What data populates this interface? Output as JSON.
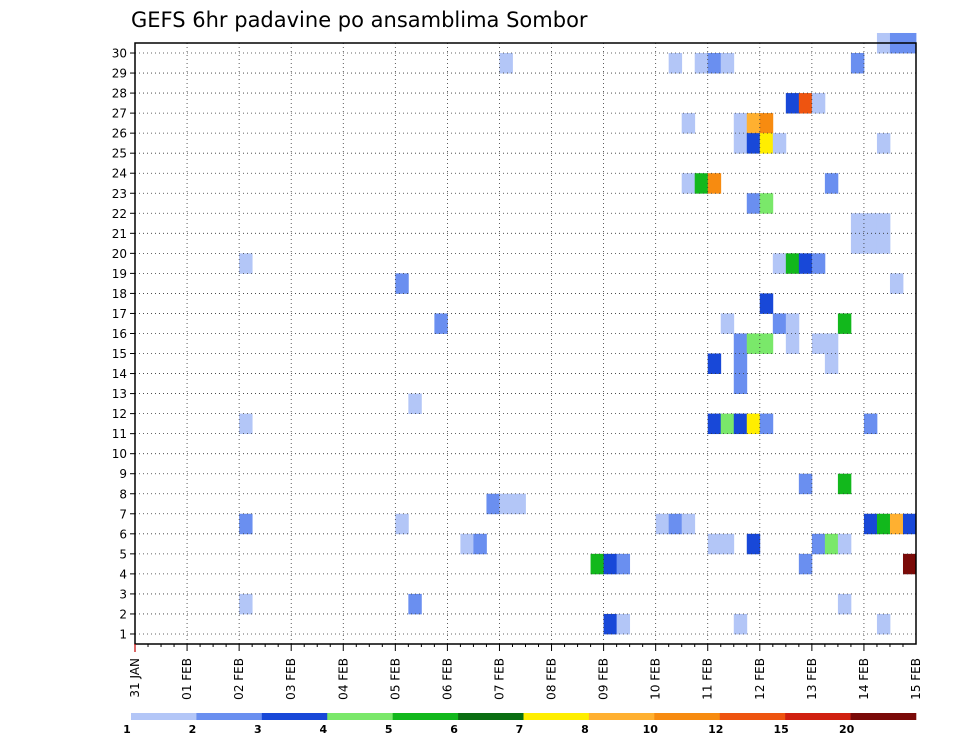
{
  "chart_data": {
    "type": "heatmap",
    "title": "GEFS 6hr padavine po ansamblima Sombor",
    "x_tick_labels": [
      "31 JAN",
      "01 FEB",
      "02 FEB",
      "03 FEB",
      "04 FEB",
      "05 FEB",
      "06 FEB",
      "07 FEB",
      "08 FEB",
      "09 FEB",
      "10 FEB",
      "11 FEB",
      "12 FEB",
      "13 FEB",
      "14 FEB",
      "15 FEB"
    ],
    "y_tick_labels": [
      "1",
      "2",
      "3",
      "4",
      "5",
      "6",
      "7",
      "8",
      "9",
      "10",
      "11",
      "12",
      "13",
      "14",
      "15",
      "16",
      "17",
      "18",
      "19",
      "20",
      "21",
      "22",
      "23",
      "24",
      "25",
      "26",
      "27",
      "28",
      "29",
      "30"
    ],
    "xlim_steps": [
      0,
      60
    ],
    "ylim_members": [
      1,
      30
    ],
    "grid": true,
    "colorbar": {
      "levels": [
        "1",
        "2",
        "3",
        "4",
        "5",
        "6",
        "7",
        "8",
        "10",
        "12",
        "15",
        "20"
      ],
      "colors": [
        "#b3c6f7",
        "#6a8ff0",
        "#1848d8",
        "#7ae86a",
        "#12b81c",
        "#0a6e12",
        "#ffee00",
        "#ffb030",
        "#f78b10",
        "#ee5410",
        "#d02010",
        "#7a0a08"
      ]
    },
    "cells_note": "each cell: [member (1-30), 6-hour step from 31 JAN 00Z, color class index 0-11]",
    "cells": [
      [
        30,
        57,
        0
      ],
      [
        30,
        58,
        1
      ],
      [
        30,
        59,
        1
      ],
      [
        29,
        28,
        0
      ],
      [
        29,
        41,
        0
      ],
      [
        29,
        43,
        0
      ],
      [
        29,
        44,
        1
      ],
      [
        29,
        45,
        0
      ],
      [
        29,
        55,
        1
      ],
      [
        27,
        50,
        2
      ],
      [
        27,
        51,
        9
      ],
      [
        27,
        52,
        0
      ],
      [
        26,
        42,
        0
      ],
      [
        26,
        46,
        0
      ],
      [
        26,
        47,
        7
      ],
      [
        26,
        48,
        8
      ],
      [
        25,
        46,
        0
      ],
      [
        25,
        47,
        2
      ],
      [
        25,
        48,
        6
      ],
      [
        25,
        49,
        0
      ],
      [
        25,
        57,
        0
      ],
      [
        23,
        42,
        0
      ],
      [
        23,
        43,
        4
      ],
      [
        23,
        44,
        8
      ],
      [
        23,
        53,
        1
      ],
      [
        22,
        47,
        1
      ],
      [
        22,
        48,
        3
      ],
      [
        21,
        55,
        0
      ],
      [
        21,
        56,
        0
      ],
      [
        21,
        57,
        0
      ],
      [
        20,
        55,
        0
      ],
      [
        20,
        56,
        0
      ],
      [
        20,
        57,
        0
      ],
      [
        19,
        8,
        0
      ],
      [
        19,
        49,
        0
      ],
      [
        19,
        50,
        4
      ],
      [
        19,
        51,
        2
      ],
      [
        19,
        52,
        1
      ],
      [
        18,
        20,
        1
      ],
      [
        18,
        58,
        0
      ],
      [
        17,
        48,
        2
      ],
      [
        16,
        23,
        1
      ],
      [
        16,
        45,
        0
      ],
      [
        16,
        49,
        1
      ],
      [
        16,
        50,
        0
      ],
      [
        16,
        54,
        4
      ],
      [
        15,
        46,
        1
      ],
      [
        15,
        47,
        3
      ],
      [
        15,
        48,
        3
      ],
      [
        15,
        50,
        0
      ],
      [
        15,
        52,
        0
      ],
      [
        15,
        53,
        0
      ],
      [
        14,
        44,
        2
      ],
      [
        14,
        46,
        1
      ],
      [
        14,
        53,
        0
      ],
      [
        13,
        46,
        1
      ],
      [
        12,
        21,
        0
      ],
      [
        11,
        8,
        0
      ],
      [
        11,
        44,
        2
      ],
      [
        11,
        45,
        3
      ],
      [
        11,
        46,
        2
      ],
      [
        11,
        47,
        6
      ],
      [
        11,
        48,
        1
      ],
      [
        11,
        56,
        1
      ],
      [
        8,
        51,
        1
      ],
      [
        8,
        54,
        4
      ],
      [
        7,
        27,
        1
      ],
      [
        7,
        28,
        0
      ],
      [
        7,
        29,
        0
      ],
      [
        6,
        8,
        1
      ],
      [
        6,
        20,
        0
      ],
      [
        6,
        40,
        0
      ],
      [
        6,
        41,
        1
      ],
      [
        6,
        42,
        0
      ],
      [
        6,
        56,
        2
      ],
      [
        6,
        57,
        4
      ],
      [
        6,
        58,
        7
      ],
      [
        6,
        59,
        2
      ],
      [
        5,
        25,
        0
      ],
      [
        5,
        26,
        1
      ],
      [
        5,
        44,
        0
      ],
      [
        5,
        45,
        0
      ],
      [
        5,
        47,
        2
      ],
      [
        5,
        52,
        1
      ],
      [
        5,
        53,
        3
      ],
      [
        5,
        54,
        0
      ],
      [
        4,
        35,
        4
      ],
      [
        4,
        36,
        2
      ],
      [
        4,
        37,
        1
      ],
      [
        4,
        51,
        1
      ],
      [
        4,
        59,
        11
      ],
      [
        2,
        8,
        0
      ],
      [
        2,
        21,
        1
      ],
      [
        2,
        54,
        0
      ],
      [
        1,
        36,
        2
      ],
      [
        1,
        37,
        0
      ],
      [
        1,
        46,
        0
      ],
      [
        1,
        57,
        0
      ]
    ]
  }
}
